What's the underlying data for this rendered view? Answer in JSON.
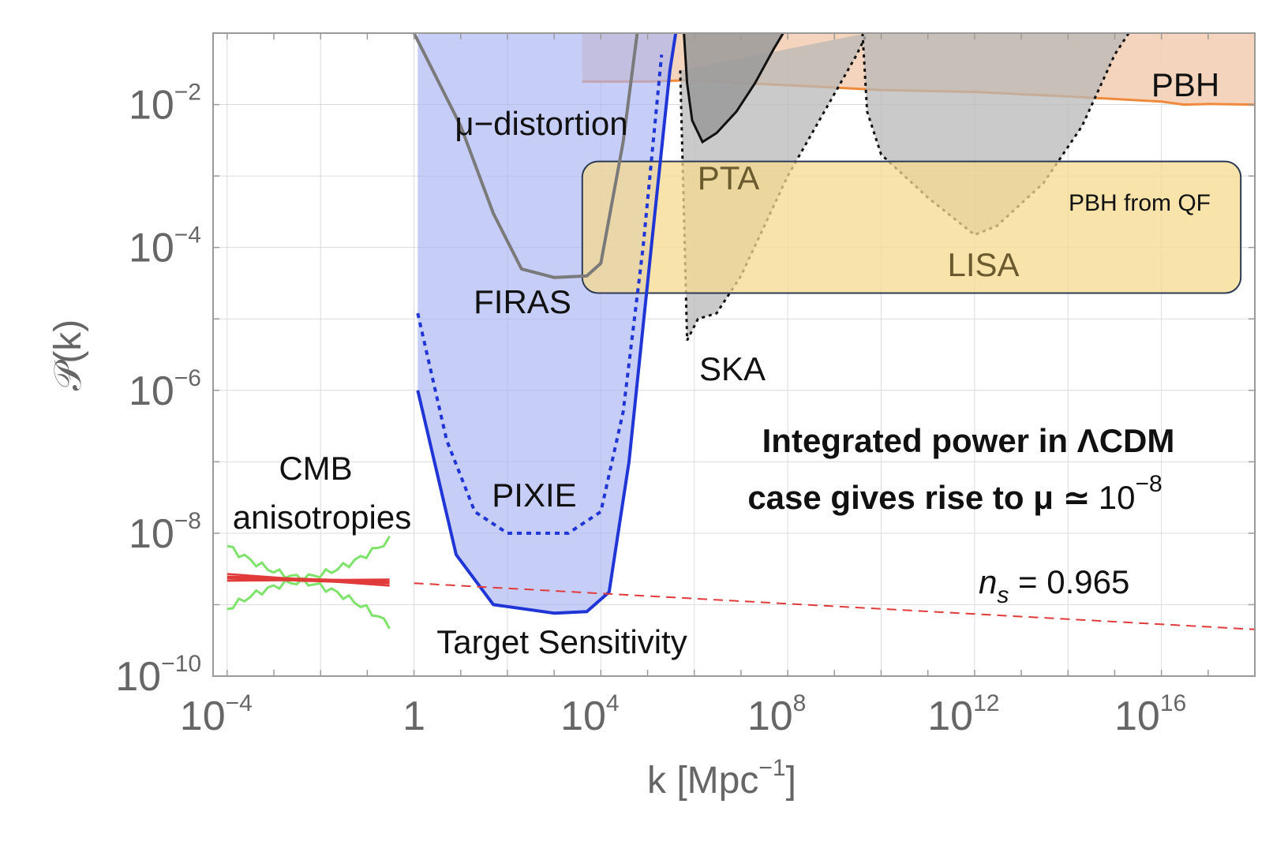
{
  "chart_data": {
    "type": "line",
    "xlabel": "k [Mpc",
    "xlabel_exp": "−1",
    "xlabel_close": "]",
    "ylabel": "𝒫(k)",
    "x_scale": "log",
    "y_scale": "log",
    "xlim": [
      5e-05,
      1e+18
    ],
    "ylim": [
      1e-10,
      0.1
    ],
    "grid": true,
    "x_ticks": [
      {
        "value": 0.0001,
        "base": "10",
        "exp": "−4"
      },
      {
        "value": 1,
        "base": "1",
        "exp": ""
      },
      {
        "value": 10000.0,
        "base": "10",
        "exp": "4"
      },
      {
        "value": 100000000.0,
        "base": "10",
        "exp": "8"
      },
      {
        "value": 1000000000000.0,
        "base": "10",
        "exp": "12"
      },
      {
        "value": 1e+16,
        "base": "10",
        "exp": "16"
      }
    ],
    "y_ticks": [
      {
        "value": 0.01,
        "base": "10",
        "exp": "−2"
      },
      {
        "value": 0.0001,
        "base": "10",
        "exp": "−4"
      },
      {
        "value": 1e-06,
        "base": "10",
        "exp": "−6"
      },
      {
        "value": 1e-08,
        "base": "10",
        "exp": "−8"
      },
      {
        "value": 1e-10,
        "base": "10",
        "exp": "−10"
      }
    ],
    "regions": [
      {
        "name": "PBH",
        "color": "#f3cdb2",
        "edge_color": "#ef8a3c",
        "boundary": [
          [
            4000.0,
            0.021
          ],
          [
            100000.0,
            0.021
          ],
          [
            1000000.0,
            0.022
          ],
          [
            10000000.0,
            0.02
          ],
          [
            300000000.0,
            0.018
          ],
          [
            10000000000.0,
            0.016
          ],
          [
            1000000000000.0,
            0.015
          ],
          [
            100000000000000.0,
            0.013
          ],
          [
            1e+16,
            0.011
          ],
          [
            3e+16,
            0.01
          ],
          [
            1e+17,
            0.0102
          ],
          [
            1e+18,
            0.01
          ]
        ]
      },
      {
        "name": "μ−distortion",
        "color": "#a8b4f2",
        "edge_color": "#2233cc",
        "boundary": [
          [
            1.2,
            1e-06
          ],
          [
            8,
            5e-09
          ],
          [
            50,
            1e-09
          ],
          [
            1000.0,
            7.6e-10
          ],
          [
            5000.0,
            8e-10
          ],
          [
            15000.0,
            1.5e-09
          ],
          [
            40000.0,
            1e-07
          ],
          [
            120000.0,
            0.0001
          ],
          [
            300000.0,
            0.03
          ],
          [
            400000.0,
            0.1
          ]
        ]
      },
      {
        "name": "PTA",
        "color": "#9a9a9a",
        "edge_color": "#111111",
        "boundary": [
          [
            600000.0,
            0.1
          ],
          [
            700000.0,
            0.02
          ],
          [
            900000.0,
            0.006
          ],
          [
            1500000.0,
            0.003
          ],
          [
            3000000.0,
            0.004
          ],
          [
            8000000.0,
            0.008
          ],
          [
            20000000.0,
            0.02
          ],
          [
            50000000.0,
            0.06
          ],
          [
            80000000.0,
            0.1
          ]
        ]
      },
      {
        "name": "SKA",
        "color": "#b8b8b8",
        "edge_color": "#111111",
        "boundary": [
          [
            500000.0,
            0.03
          ],
          [
            600000.0,
            0.0003
          ],
          [
            700000.0,
            5e-06
          ],
          [
            1200000.0,
            1e-05
          ],
          [
            3000000.0,
            1.2e-05
          ],
          [
            10000000.0,
            4e-05
          ],
          [
            100000000.0,
            0.001
          ],
          [
            3000000000.0,
            0.05
          ],
          [
            5000000000.0,
            0.1
          ]
        ]
      },
      {
        "name": "LISA",
        "color": "#b8b8b8",
        "edge_color": "#111111",
        "boundary": [
          [
            4000000000.0,
            0.1
          ],
          [
            5000000000.0,
            0.008
          ],
          [
            10000000000.0,
            0.002
          ],
          [
            100000000000.0,
            0.0005
          ],
          [
            1000000000000.0,
            0.00015
          ],
          [
            3000000000000.0,
            0.0002
          ],
          [
            30000000000000.0,
            0.0008
          ],
          [
            200000000000000.0,
            0.005
          ],
          [
            1000000000000000.0,
            0.05
          ],
          [
            2000000000000000.0,
            0.1
          ]
        ]
      },
      {
        "name": "PBH from QF",
        "color": "#f5d98f",
        "edge_color": "#2b3a55",
        "boundary": [
          [
            4000.0,
            0.0016
          ],
          [
            5e+17,
            2.3e-05
          ]
        ]
      }
    ],
    "series": [
      {
        "name": "FIRAS",
        "style": "solid",
        "color": "#7a7a7a",
        "x": [
          1,
          10,
          50,
          200,
          1000.0,
          5000.0,
          10000.0,
          30000.0,
          60000.0
        ],
        "y": [
          0.1,
          0.005,
          0.0003,
          5e-05,
          3.8e-05,
          4e-05,
          6e-05,
          0.003,
          0.1
        ]
      },
      {
        "name": "PIXIE",
        "style": "dotted",
        "color": "#1f35d6",
        "x": [
          1.2,
          5,
          20,
          100,
          500,
          2000.0,
          10000.0,
          30000.0,
          80000.0,
          200000.0
        ],
        "y": [
          1.2e-05,
          2e-07,
          2e-08,
          1e-08,
          1e-08,
          1e-08,
          2e-08,
          5e-07,
          0.0001,
          0.05
        ]
      },
      {
        "name": "Target Sensitivity",
        "style": "solid",
        "color": "#1f35d6",
        "x": [
          1.2,
          8,
          50,
          1000.0,
          5000.0,
          15000.0,
          40000.0,
          120000.0,
          300000.0,
          400000.0
        ],
        "y": [
          1e-06,
          5e-09,
          1e-09,
          7.6e-10,
          8e-10,
          1.5e-09,
          1e-07,
          0.0001,
          0.03,
          0.1
        ]
      },
      {
        "name": "n_s = 0.965",
        "style": "dashed",
        "color": "#e03a3a",
        "x": [
          1,
          1e+18
        ],
        "y": [
          2e-09,
          4.5e-10
        ]
      },
      {
        "name": "CMB anisotropies",
        "style": "solid",
        "color": "#e03a3a",
        "x": [
          0.0001,
          0.3
        ],
        "y": [
          2.4e-09,
          2.05e-09
        ]
      }
    ]
  },
  "labels": {
    "pbh": "PBH",
    "mu_distortion": "μ−distortion",
    "pta": "PTA",
    "pbh_qf": "PBH from QF",
    "lisa": "LISA",
    "firas": "FIRAS",
    "ska": "SKA",
    "pixie": "PIXIE",
    "cmb_line1": "CMB",
    "cmb_line2": "anisotropies",
    "target": "Target Sensitivity",
    "note_line1": "Integrated power in ΛCDM",
    "note_line2_prefix": "case gives rise to μ ≃",
    "note_line2_base": "10",
    "note_line2_exp": "−8",
    "ns_n": "n",
    "ns_sub": "s",
    "ns_value": " = 0.965"
  }
}
